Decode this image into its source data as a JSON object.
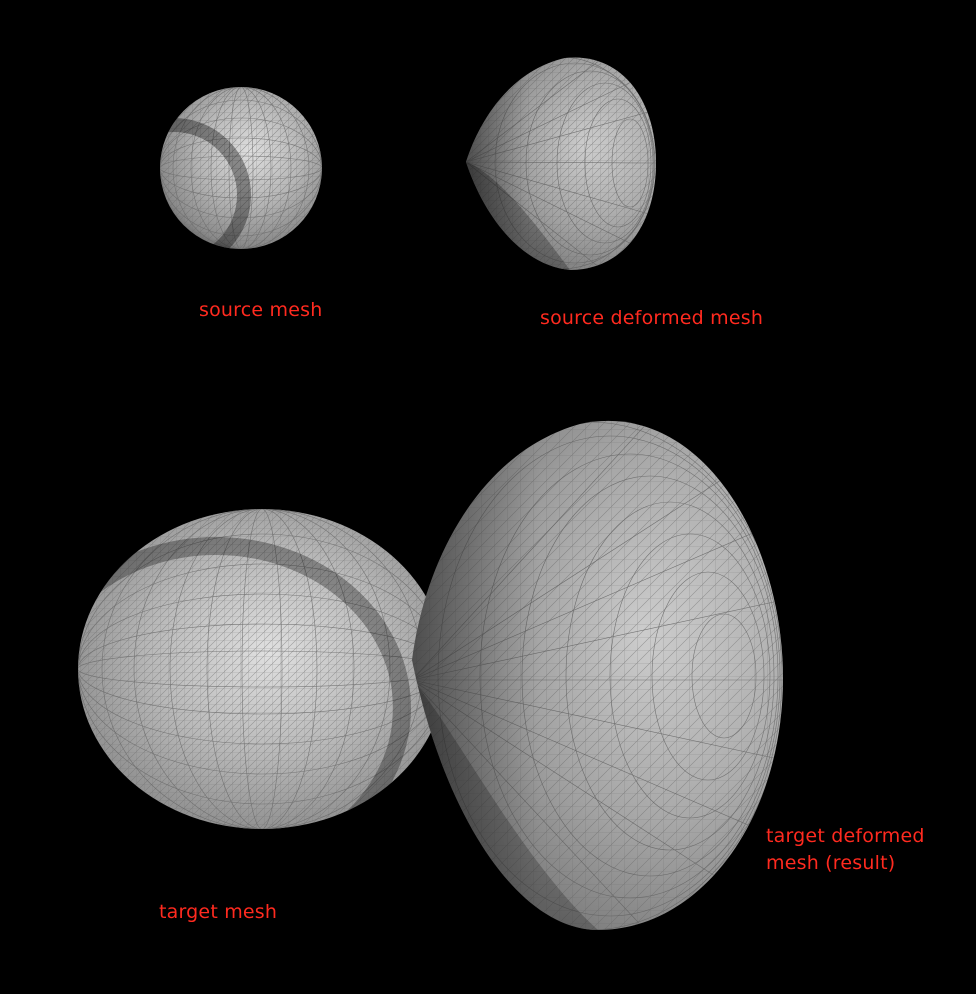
{
  "colors": {
    "background": "#000000",
    "label": "#ff2a1f",
    "mesh_fill_light": "#d2d2d2",
    "mesh_fill_dark": "#3a3a3a",
    "wireframe": "#707070"
  },
  "labels": {
    "source_mesh": "source mesh",
    "source_deformed_mesh": "source deformed mesh",
    "target_mesh": "target mesh",
    "target_deformed_line1": "target deformed",
    "target_deformed_line2": "mesh (result)"
  }
}
